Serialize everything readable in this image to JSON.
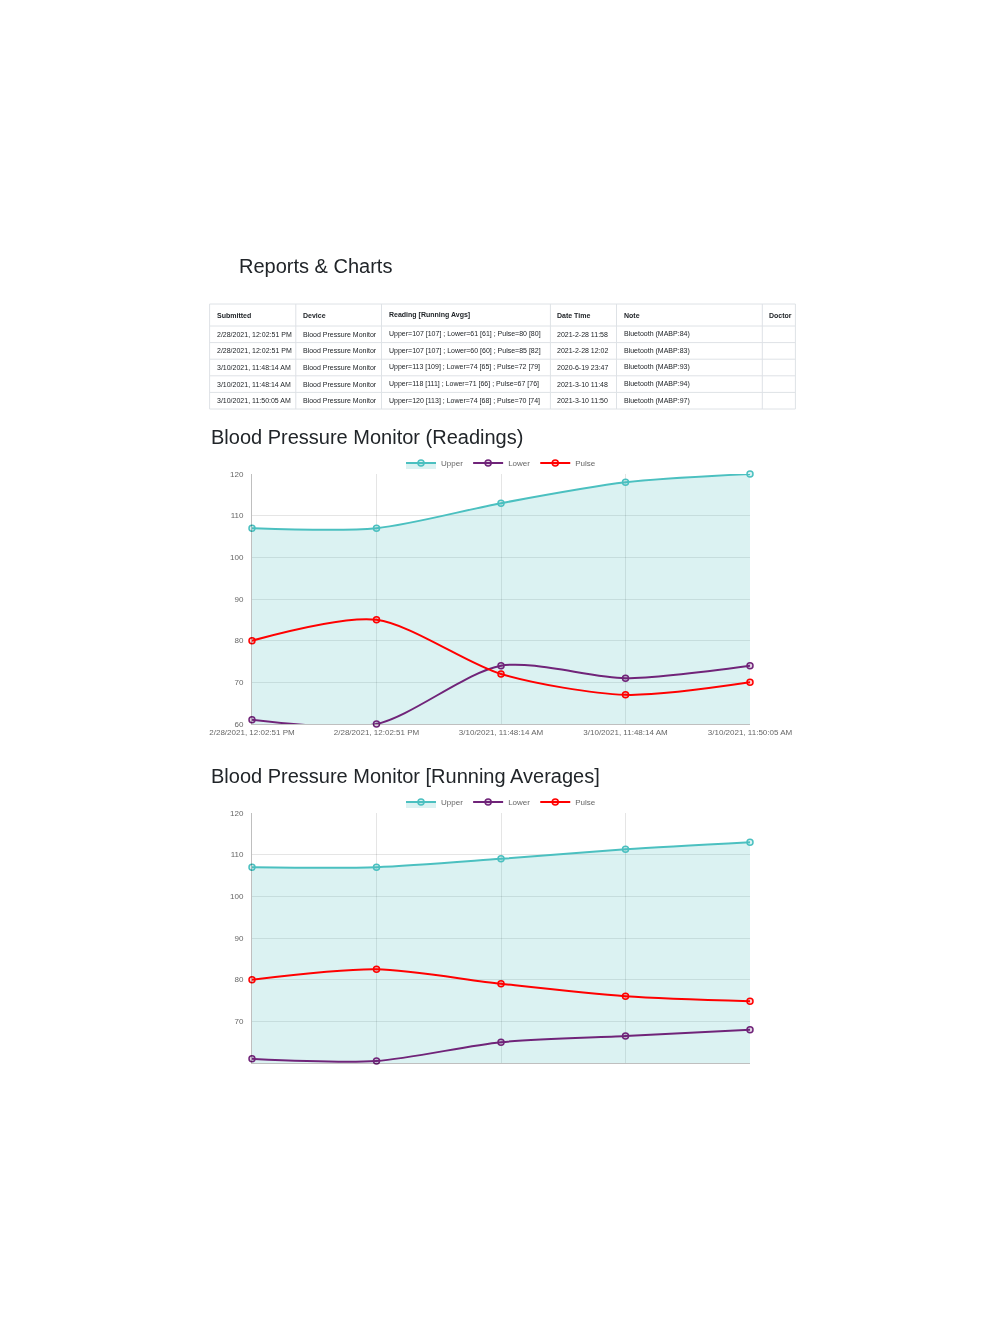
{
  "chart_data": [
    {
      "type": "other",
      "title": "Reports & Charts",
      "categories": [
        "Submitted",
        "Device",
        "Reading [Running Avgs]",
        "Date Time",
        "Note",
        "Doctor"
      ],
      "y_categories": [
        "2/28/2021, 12:02:51 PM",
        "2/28/2021, 12:02:51 PM",
        "3/10/2021, 11:48:14 AM",
        "3/10/2021, 11:48:14 AM",
        "3/10/2021, 11:50:05 AM"
      ],
      "cell_labels": [
        [
          "Blood Pressure Monitor",
          "Upper=107 [107] ; Lower=61 [61] ; Pulse=80 [80]",
          "2021-2-28 11:58",
          "Bluetooth (MABP:84)"
        ],
        [
          "Blood Pressure Monitor",
          "Upper=107 [107] ; Lower=60 [60] ; Pulse=85 [82]",
          "2021-2-28 12:02",
          "Bluetooth (MABP:83)"
        ],
        [
          "Blood Pressure Monitor",
          "Upper=113 [109] ; Lower=74 [65] ; Pulse=72 [79]",
          "2020-6-19 23:47",
          "Bluetooth (MABP:93)"
        ],
        [
          "Blood Pressure Monitor",
          "Upper=118 [111] ; Lower=71 [66] ; Pulse=67 [76]",
          "2021-3-10 11:48",
          "Bluetooth (MABP:94)"
        ],
        [
          "Blood Pressure Monitor",
          "Upper=120 [113] ; Lower=74 [68] ; Pulse=70 [74]",
          "2021-3-10 11:50",
          "Bluetooth (MABP:97)"
        ]
      ]
    },
    {
      "type": "line",
      "title": "Blood Pressure Monitor (Readings)",
      "categories": [
        "2/28/2021, 12:02:51 PM",
        "2/28/2021, 12:02:51 PM",
        "3/10/2021, 11:48:14 AM",
        "3/10/2021, 11:48:14 AM",
        "3/10/2021, 11:50:05 AM"
      ],
      "series": [
        {
          "name": "Upper",
          "type": "area",
          "color": "#4bc0c0",
          "values": [
            107,
            107,
            113,
            118,
            120
          ]
        },
        {
          "name": "Lower",
          "color": "#702479",
          "values": [
            61,
            60,
            74,
            71,
            74
          ]
        },
        {
          "name": "Pulse",
          "color": "#ff0000",
          "values": [
            80,
            85,
            72,
            67,
            70
          ]
        }
      ],
      "ylim": [
        60,
        120
      ],
      "yticks": [
        60,
        70,
        80,
        90,
        100,
        110,
        120
      ],
      "grid": true,
      "legend": "top",
      "marker": "circle"
    },
    {
      "type": "line",
      "title": "Blood Pressure Monitor [Running Averages]",
      "categories": [
        null,
        null,
        null,
        null,
        null
      ],
      "series": [
        {
          "name": "Upper",
          "type": "area",
          "color": "#4bc0c0",
          "values": [
            107,
            107,
            109,
            111.3,
            113
          ]
        },
        {
          "name": "Lower",
          "color": "#702479",
          "values": [
            61,
            60.5,
            65,
            66.5,
            68
          ]
        },
        {
          "name": "Pulse",
          "color": "#ff0000",
          "values": [
            80,
            82.5,
            79,
            76,
            74.8
          ]
        }
      ],
      "ylim": [
        60,
        120
      ],
      "yticks": [
        70,
        80,
        90,
        100,
        110,
        120
      ],
      "grid": true,
      "legend": "top",
      "marker": "circle",
      "tick_labels": "y"
    }
  ]
}
